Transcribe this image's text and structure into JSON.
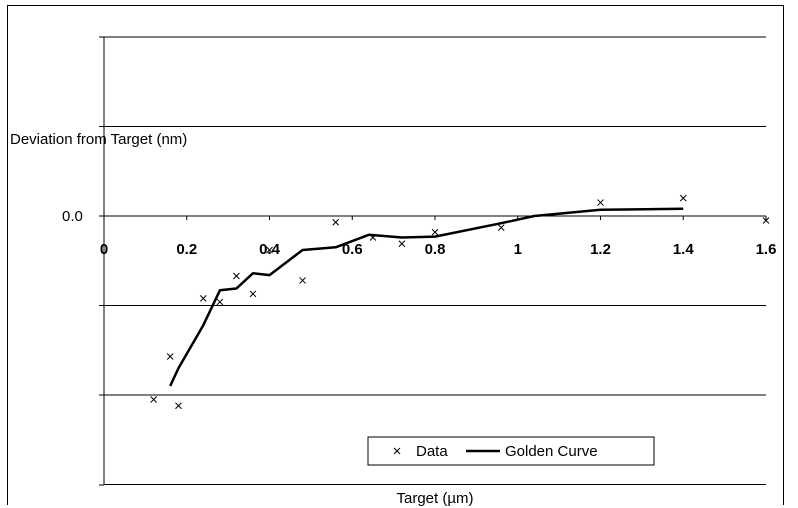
{
  "chart_data": {
    "type": "line",
    "xlabel": "Target (µm)",
    "ylabel": "Deviation from Target (nm)",
    "xlim": [
      0,
      1.6
    ],
    "ylim": [
      -3,
      1
    ],
    "x_ticks": [
      "0",
      "0.2",
      "0.4",
      "0.6",
      "0.8",
      "1",
      "1.2",
      "1.4",
      "1.6"
    ],
    "y_tick_labels": [
      {
        "value": 0,
        "label": "0.0"
      }
    ],
    "y_gridlines": [
      -3,
      -2,
      -1,
      0,
      1,
      2
    ],
    "grid": true,
    "legend_position": "bottom-center",
    "series": [
      {
        "name": "Data",
        "style": "markers-x",
        "color": "#000000",
        "x": [
          0.12,
          0.16,
          0.18,
          0.24,
          0.28,
          0.32,
          0.36,
          0.4,
          0.48,
          0.56,
          0.65,
          0.72,
          0.8,
          0.96,
          1.2,
          1.4,
          1.6
        ],
        "y": [
          -2.05,
          -1.57,
          -2.12,
          -0.92,
          -0.96,
          -0.67,
          -0.87,
          -0.38,
          -0.72,
          -0.07,
          -0.24,
          -0.31,
          -0.18,
          -0.13,
          0.15,
          0.2,
          -0.05
        ]
      },
      {
        "name": "Golden Curve",
        "style": "line",
        "color": "#000000",
        "x": [
          0.16,
          0.18,
          0.24,
          0.28,
          0.32,
          0.36,
          0.4,
          0.48,
          0.56,
          0.64,
          0.72,
          0.8,
          0.96,
          1.04,
          1.2,
          1.4
        ],
        "y": [
          -1.9,
          -1.7,
          -1.22,
          -0.83,
          -0.81,
          -0.64,
          -0.66,
          -0.38,
          -0.35,
          -0.21,
          -0.24,
          -0.23,
          -0.08,
          0.0,
          0.07,
          0.08
        ]
      }
    ]
  }
}
